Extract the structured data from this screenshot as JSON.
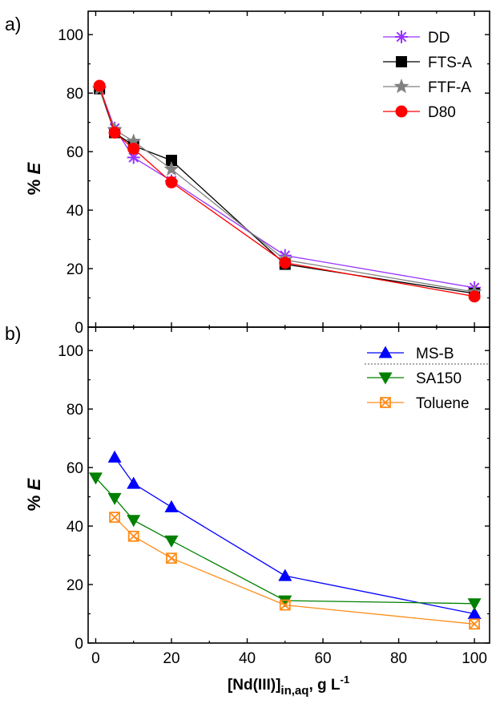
{
  "chart_data": [
    {
      "type": "line",
      "panel_label": "a)",
      "ylabel": "% E",
      "ylim": [
        0,
        108
      ],
      "yticks": [
        0,
        20,
        40,
        60,
        80,
        100
      ],
      "xlim": [
        -2,
        104
      ],
      "xticks": [
        0,
        20,
        40,
        60,
        80,
        100
      ],
      "legend_position": "top-right",
      "series": [
        {
          "name": "DD",
          "color": "#9933ff",
          "marker": "asterisk",
          "x": [
            1,
            5,
            10,
            20,
            50,
            100
          ],
          "y": [
            82,
            68,
            58,
            50,
            24.5,
            13.5
          ]
        },
        {
          "name": "FTS-A",
          "color": "#000000",
          "marker": "square",
          "x": [
            1,
            5,
            10,
            20,
            50,
            100
          ],
          "y": [
            81.5,
            66.5,
            62,
            57,
            21.5,
            11.5
          ]
        },
        {
          "name": "FTF-A",
          "color": "#808080",
          "marker": "star",
          "x": [
            1,
            5,
            10,
            20,
            50,
            100
          ],
          "y": [
            81.5,
            67.5,
            63.5,
            54,
            23,
            12
          ]
        },
        {
          "name": "D80",
          "color": "#ff0000",
          "marker": "circle",
          "x": [
            1,
            5,
            10,
            20,
            50,
            100
          ],
          "y": [
            82.5,
            66.5,
            61,
            49.5,
            22,
            10.5
          ]
        }
      ]
    },
    {
      "type": "line",
      "panel_label": "b)",
      "ylabel": "% E",
      "xlabel_main": "[Nd(III)]",
      "xlabel_sub": "in,aq",
      "xlabel_tail": ", g L",
      "xlabel_sup": "-1",
      "ylim": [
        0,
        108
      ],
      "yticks": [
        0,
        20,
        40,
        60,
        80,
        100
      ],
      "xlim": [
        -2,
        104
      ],
      "xticks": [
        0,
        20,
        40,
        60,
        80,
        100
      ],
      "legend_position": "top-right",
      "series": [
        {
          "name": "MS-B",
          "color": "#0000ff",
          "marker": "triangle-up",
          "x": [
            5,
            10,
            20,
            50,
            100
          ],
          "y": [
            63.5,
            54.5,
            46.5,
            23,
            10
          ]
        },
        {
          "name": "SA150",
          "color": "#008000",
          "marker": "triangle-down",
          "x": [
            0,
            5,
            10,
            20,
            50,
            100
          ],
          "y": [
            56.5,
            49.5,
            42,
            35,
            14.5,
            13.5
          ]
        },
        {
          "name": "Toluene",
          "color": "#ff8c1a",
          "marker": "boxed-x",
          "x": [
            5,
            10,
            20,
            50,
            100
          ],
          "y": [
            43,
            36.5,
            29,
            13,
            6.5
          ]
        }
      ]
    }
  ]
}
